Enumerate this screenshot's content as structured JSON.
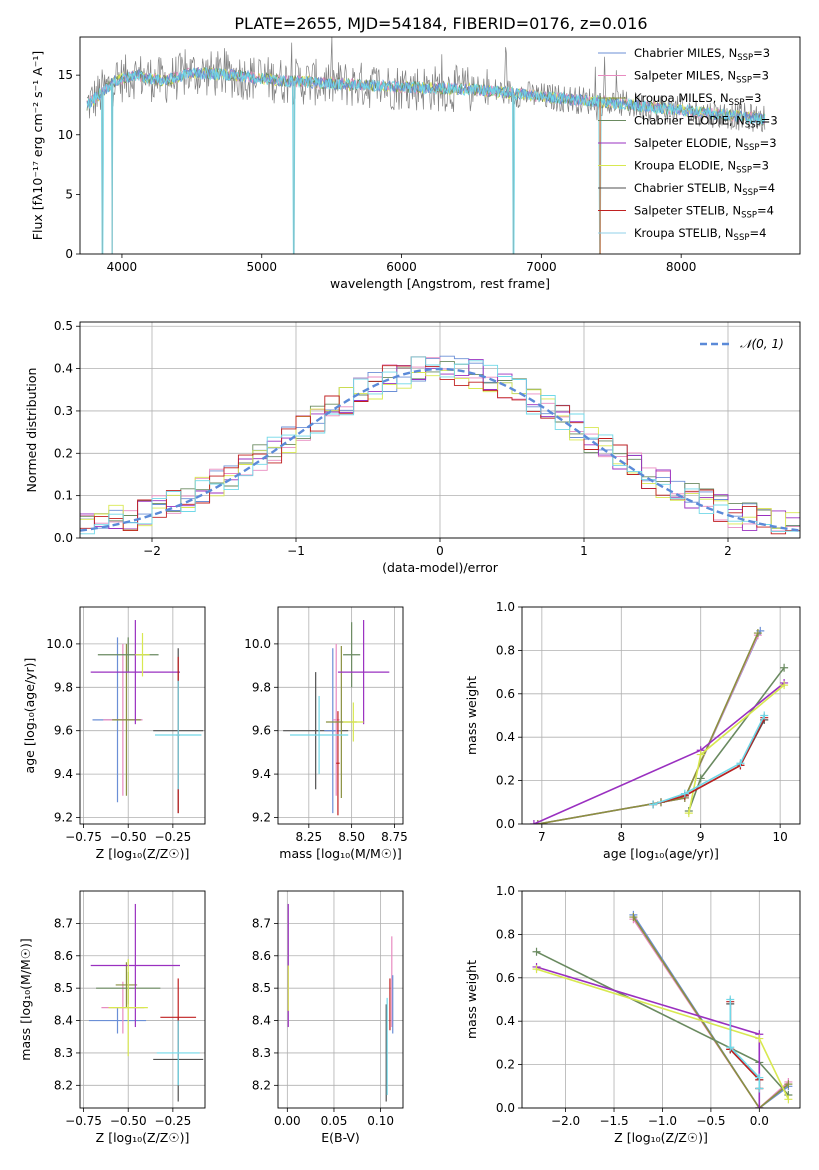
{
  "title": "PLATE=2655, MJD=54184, FIBERID=0176, z=0.016",
  "colors": [
    "#6b8fd6",
    "#e88bc0",
    "#8a9040",
    "#6a8a60",
    "#9a30c0",
    "#d8e850",
    "#505050",
    "#c02020",
    "#70d8e8"
  ],
  "legend_spectrum": [
    {
      "label": "Chabrier MILES, N",
      "sub": "SSP",
      "suffix": "=3",
      "color": "#6b8fd6"
    },
    {
      "label": "Salpeter MILES, N",
      "sub": "SSP",
      "suffix": "=3",
      "color": "#e88bc0"
    },
    {
      "label": "Kroupa MILES, N",
      "sub": "SSP",
      "suffix": "=3",
      "color": "#8a9040"
    },
    {
      "label": "Chabrier ELODIE, N",
      "sub": "SSP",
      "suffix": "=3",
      "color": "#6a8a60"
    },
    {
      "label": "Salpeter ELODIE, N",
      "sub": "SSP",
      "suffix": "=3",
      "color": "#9a30c0"
    },
    {
      "label": "Kroupa ELODIE, N",
      "sub": "SSP",
      "suffix": "=3",
      "color": "#d8e850"
    },
    {
      "label": "Chabrier STELIB, N",
      "sub": "SSP",
      "suffix": "=4",
      "color": "#505050"
    },
    {
      "label": "Salpeter STELIB, N",
      "sub": "SSP",
      "suffix": "=4",
      "color": "#c02020"
    },
    {
      "label": "Kroupa STELIB, N",
      "sub": "SSP",
      "suffix": "=4",
      "color": "#90d0e8"
    }
  ],
  "legend_hist": "𝒩(0, 1)",
  "chart_data": [
    {
      "type": "line",
      "name": "spectrum",
      "xlabel": "wavelength [Angstrom, rest frame]",
      "ylabel": "Flux [fλ10⁻¹⁷ erg cm⁻² s⁻¹ A⁻¹]",
      "xlim": [
        3700,
        8850
      ],
      "ylim": [
        0,
        18.2
      ],
      "xticks": [
        4000,
        5000,
        6000,
        7000,
        8000
      ],
      "yticks": [
        0,
        5,
        10,
        15
      ],
      "continuum": [
        [
          3750,
          12.5
        ],
        [
          3850,
          13.5
        ],
        [
          3950,
          14.5
        ],
        [
          4100,
          15.0
        ],
        [
          4300,
          14.5
        ],
        [
          4500,
          15.2
        ],
        [
          4800,
          15.0
        ],
        [
          5000,
          14.7
        ],
        [
          5200,
          14.5
        ],
        [
          5500,
          14.3
        ],
        [
          6000,
          14.0
        ],
        [
          6500,
          13.8
        ],
        [
          6800,
          13.5
        ],
        [
          7000,
          13.2
        ],
        [
          7400,
          12.8
        ],
        [
          7800,
          12.3
        ],
        [
          8200,
          11.8
        ],
        [
          8600,
          11.3
        ]
      ],
      "dips": [
        [
          3860,
          0
        ],
        [
          3930,
          0
        ],
        [
          5230,
          0
        ],
        [
          6800,
          0
        ],
        [
          7420,
          0
        ]
      ]
    },
    {
      "type": "histogram",
      "name": "residuals",
      "xlabel": "(data-model)/error",
      "ylabel": "Normed distribution",
      "xlim": [
        -2.5,
        2.5
      ],
      "ylim": [
        0,
        0.51
      ],
      "xticks": [
        -2,
        -1,
        0,
        1,
        2
      ],
      "yticks": [
        0.0,
        0.1,
        0.2,
        0.3,
        0.4,
        0.5
      ],
      "bin_width": 0.1,
      "gaussian_label": "𝒩(0, 1)"
    },
    {
      "type": "scatter",
      "name": "age-vs-Z",
      "xlabel": "Z [log₁₀(Z/Z☉)]",
      "ylabel": "age  [log₁₀(age/yr)]",
      "xlim": [
        -0.77,
        -0.07
      ],
      "ylim": [
        9.17,
        10.17
      ],
      "xticks": [
        -0.75,
        -0.5,
        -0.25
      ],
      "yticks": [
        9.2,
        9.4,
        9.6,
        9.8,
        10.0
      ],
      "points": [
        {
          "x": -0.56,
          "y": 9.65,
          "xerr": 0.14,
          "yerr": 0.38,
          "c": 0
        },
        {
          "x": -0.53,
          "y": 9.65,
          "xerr": 0.11,
          "yerr": 0.35,
          "c": 1
        },
        {
          "x": -0.51,
          "y": 9.65,
          "xerr": 0.08,
          "yerr": 0.35,
          "c": 2
        },
        {
          "x": -0.5,
          "y": 9.95,
          "xerr": 0.17,
          "yerr": 0.08,
          "c": 3
        },
        {
          "x": -0.46,
          "y": 9.87,
          "xerr": 0.25,
          "yerr": 0.24,
          "c": 4
        },
        {
          "x": -0.42,
          "y": 9.95,
          "xerr": 0.04,
          "yerr": 0.1,
          "c": 5
        },
        {
          "x": -0.22,
          "y": 9.6,
          "xerr": 0.14,
          "yerr": 0.38,
          "c": 6
        },
        {
          "x": -0.22,
          "y": 9.58,
          "xerr": 0.01,
          "yerr": 0.36,
          "c": 7
        },
        {
          "x": -0.22,
          "y": 9.58,
          "xerr": 0.13,
          "yerr": 0.25,
          "c": 8
        }
      ]
    },
    {
      "type": "scatter",
      "name": "age-vs-mass",
      "xlabel": "mass [log₁₀(M/M☉)]",
      "ylabel": "",
      "xlim": [
        8.07,
        8.8
      ],
      "ylim": [
        9.17,
        10.17
      ],
      "xticks": [
        8.25,
        8.5,
        8.75
      ],
      "yticks": [
        9.2,
        9.4,
        9.6,
        9.8,
        10.0
      ],
      "points": [
        {
          "x": 8.29,
          "y": 9.6,
          "xerr": 0.19,
          "yerr": 0.27,
          "c": 6
        },
        {
          "x": 8.39,
          "y": 9.6,
          "xerr": 0.05,
          "yerr": 0.38,
          "c": 0
        },
        {
          "x": 8.41,
          "y": 9.65,
          "xerr": 0.02,
          "yerr": 0.35,
          "c": 1
        },
        {
          "x": 8.42,
          "y": 9.45,
          "xerr": 0.01,
          "yerr": 0.24,
          "c": 7
        },
        {
          "x": 8.44,
          "y": 9.64,
          "xerr": 0.09,
          "yerr": 0.35,
          "c": 2
        },
        {
          "x": 8.5,
          "y": 9.95,
          "xerr": 0.05,
          "yerr": 0.15,
          "c": 3
        },
        {
          "x": 8.57,
          "y": 9.87,
          "xerr": 0.15,
          "yerr": 0.24,
          "c": 4
        },
        {
          "x": 8.51,
          "y": 9.64,
          "xerr": 0.06,
          "yerr": 0.09,
          "c": 5
        },
        {
          "x": 8.31,
          "y": 9.58,
          "xerr": 0.17,
          "yerr": 0.18,
          "c": 8
        }
      ]
    },
    {
      "type": "line",
      "name": "mass-weight-vs-age",
      "xlabel": "age  [log₁₀(age/yr)]",
      "ylabel": "mass weight",
      "xlim": [
        6.75,
        10.25
      ],
      "ylim": [
        0,
        1.0
      ],
      "xticks": [
        7,
        8,
        9,
        10
      ],
      "yticks": [
        0.0,
        0.2,
        0.4,
        0.6,
        0.8,
        1.0
      ],
      "series": [
        {
          "c": 0,
          "x": [
            6.95,
            8.5,
            8.8,
            9.75
          ],
          "y": [
            0.0,
            0.1,
            0.12,
            0.89
          ]
        },
        {
          "c": 1,
          "x": [
            6.95,
            8.5,
            8.8,
            9.72
          ],
          "y": [
            0.0,
            0.1,
            0.12,
            0.87
          ]
        },
        {
          "c": 2,
          "x": [
            6.95,
            8.5,
            8.8,
            9.72
          ],
          "y": [
            0.0,
            0.1,
            0.12,
            0.88
          ]
        },
        {
          "c": 3,
          "x": [
            8.85,
            9.0,
            10.05
          ],
          "y": [
            0.06,
            0.21,
            0.72
          ]
        },
        {
          "c": 4,
          "x": [
            6.9,
            9.0,
            10.05
          ],
          "y": [
            0.0,
            0.34,
            0.65
          ]
        },
        {
          "c": 5,
          "x": [
            8.85,
            9.0,
            10.05
          ],
          "y": [
            0.05,
            0.32,
            0.64
          ]
        },
        {
          "c": 6,
          "x": [
            8.4,
            8.8,
            9.5,
            9.8
          ],
          "y": [
            0.09,
            0.13,
            0.27,
            0.48
          ]
        },
        {
          "c": 7,
          "x": [
            8.4,
            8.8,
            9.5,
            9.8
          ],
          "y": [
            0.09,
            0.13,
            0.27,
            0.49
          ]
        },
        {
          "c": 8,
          "x": [
            8.4,
            8.8,
            9.5,
            9.8
          ],
          "y": [
            0.09,
            0.14,
            0.28,
            0.5
          ]
        }
      ]
    },
    {
      "type": "scatter",
      "name": "mass-vs-Z",
      "xlabel": "Z [log₁₀(Z/Z☉)]",
      "ylabel": "mass [log₁₀(M/M☉)]",
      "xlim": [
        -0.77,
        -0.07
      ],
      "ylim": [
        8.13,
        8.8
      ],
      "xticks": [
        -0.75,
        -0.5,
        -0.25
      ],
      "yticks": [
        8.2,
        8.3,
        8.4,
        8.5,
        8.6,
        8.7
      ],
      "points": [
        {
          "x": -0.56,
          "y": 8.4,
          "xerr": 0.16,
          "yerr": 0.04,
          "c": 0
        },
        {
          "x": -0.53,
          "y": 8.44,
          "xerr": 0.12,
          "yerr": 0.08,
          "c": 1
        },
        {
          "x": -0.51,
          "y": 8.51,
          "xerr": 0.06,
          "yerr": 0.07,
          "c": 2
        },
        {
          "x": -0.5,
          "y": 8.5,
          "xerr": 0.18,
          "yerr": 0.05,
          "c": 3
        },
        {
          "x": -0.46,
          "y": 8.57,
          "xerr": 0.25,
          "yerr": 0.19,
          "c": 4
        },
        {
          "x": -0.5,
          "y": 8.44,
          "xerr": 0.11,
          "yerr": 0.15,
          "c": 5
        },
        {
          "x": -0.22,
          "y": 8.28,
          "xerr": 0.14,
          "yerr": 0.13,
          "c": 6
        },
        {
          "x": -0.22,
          "y": 8.41,
          "xerr": 0.1,
          "yerr": 0.12,
          "c": 7
        },
        {
          "x": -0.22,
          "y": 8.3,
          "xerr": 0.12,
          "yerr": 0.1,
          "c": 8
        }
      ]
    },
    {
      "type": "scatter",
      "name": "mass-vs-ebv",
      "xlabel": "E(B-V)",
      "ylabel": "",
      "xlim": [
        -0.01,
        0.124
      ],
      "ylim": [
        8.13,
        8.8
      ],
      "xticks": [
        0.0,
        0.05,
        0.1
      ],
      "yticks": [
        8.2,
        8.3,
        8.4,
        8.5,
        8.6,
        8.7
      ],
      "points": [
        {
          "x": 0.001,
          "y": 8.57,
          "xerr": 0,
          "yerr": 0.19,
          "c": 4
        },
        {
          "x": 0.001,
          "y": 8.5,
          "xerr": 0,
          "yerr": 0.07,
          "c": 5
        },
        {
          "x": 0.106,
          "y": 8.3,
          "xerr": 0,
          "yerr": 0.15,
          "c": 6
        },
        {
          "x": 0.107,
          "y": 8.32,
          "xerr": 0,
          "yerr": 0.15,
          "c": 8
        },
        {
          "x": 0.11,
          "y": 8.45,
          "xerr": 0,
          "yerr": 0.08,
          "c": 7
        },
        {
          "x": 0.112,
          "y": 8.52,
          "xerr": 0,
          "yerr": 0.14,
          "c": 1
        },
        {
          "x": 0.113,
          "y": 8.45,
          "xerr": 0,
          "yerr": 0.09,
          "c": 0
        }
      ]
    },
    {
      "type": "line",
      "name": "mass-weight-vs-Z",
      "xlabel": "Z [log₁₀(Z/Z☉)]",
      "ylabel": "mass weight",
      "xlim": [
        -2.45,
        0.42
      ],
      "ylim": [
        0,
        1.0
      ],
      "xticks": [
        -2.0,
        -1.5,
        -1.0,
        -0.5,
        0.0
      ],
      "yticks": [
        0.0,
        0.2,
        0.4,
        0.6,
        0.8,
        1.0
      ],
      "series": [
        {
          "c": 0,
          "x": [
            -1.3,
            0.0,
            0.3
          ],
          "y": [
            0.89,
            0.0,
            0.1
          ]
        },
        {
          "c": 1,
          "x": [
            -1.3,
            0.0,
            0.3
          ],
          "y": [
            0.87,
            0.0,
            0.12
          ]
        },
        {
          "c": 2,
          "x": [
            -1.3,
            0.0,
            0.3
          ],
          "y": [
            0.88,
            0.0,
            0.11
          ]
        },
        {
          "c": 3,
          "x": [
            -2.3,
            0.0,
            0.3
          ],
          "y": [
            0.72,
            0.21,
            0.06
          ]
        },
        {
          "c": 4,
          "x": [
            -2.3,
            0.0,
            0.0
          ],
          "y": [
            0.65,
            0.34,
            0.0
          ]
        },
        {
          "c": 5,
          "x": [
            -2.3,
            0.0,
            0.3
          ],
          "y": [
            0.64,
            0.32,
            0.04
          ]
        },
        {
          "c": 6,
          "x": [
            -0.3,
            -0.3,
            0.0,
            0.0
          ],
          "y": [
            0.48,
            0.27,
            0.13,
            0.09
          ]
        },
        {
          "c": 7,
          "x": [
            -0.3,
            -0.3,
            0.0,
            0.0
          ],
          "y": [
            0.49,
            0.27,
            0.13,
            0.09
          ]
        },
        {
          "c": 8,
          "x": [
            -0.3,
            -0.3,
            0.0,
            0.0
          ],
          "y": [
            0.5,
            0.28,
            0.14,
            0.09
          ]
        }
      ]
    }
  ]
}
